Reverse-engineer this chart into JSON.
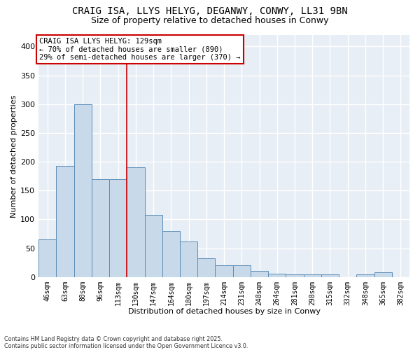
{
  "title_line1": "CRAIG ISA, LLYS HELYG, DEGANWY, CONWY, LL31 9BN",
  "title_line2": "Size of property relative to detached houses in Conwy",
  "xlabel": "Distribution of detached houses by size in Conwy",
  "ylabel": "Number of detached properties",
  "categories": [
    "46sqm",
    "63sqm",
    "80sqm",
    "96sqm",
    "113sqm",
    "130sqm",
    "147sqm",
    "164sqm",
    "180sqm",
    "197sqm",
    "214sqm",
    "231sqm",
    "248sqm",
    "264sqm",
    "281sqm",
    "298sqm",
    "315sqm",
    "332sqm",
    "348sqm",
    "365sqm",
    "382sqm"
  ],
  "values": [
    65,
    193,
    300,
    170,
    170,
    190,
    108,
    80,
    62,
    33,
    20,
    20,
    10,
    6,
    4,
    4,
    4,
    0,
    4,
    8,
    0
  ],
  "bar_color": "#c8d9ea",
  "bar_edge_color": "#5b8db8",
  "vline_color": "#cc0000",
  "vline_x_index": 5,
  "annotation_text": "CRAIG ISA LLYS HELYG: 129sqm\n← 70% of detached houses are smaller (890)\n29% of semi-detached houses are larger (370) →",
  "annotation_box_edgecolor": "#cc0000",
  "ylim": [
    0,
    420
  ],
  "yticks": [
    0,
    50,
    100,
    150,
    200,
    250,
    300,
    350,
    400
  ],
  "plot_bg_color": "#e8eef5",
  "grid_color": "#ffffff",
  "footer": "Contains HM Land Registry data © Crown copyright and database right 2025.\nContains public sector information licensed under the Open Government Licence v3.0.",
  "title_fontsize": 10,
  "subtitle_fontsize": 9
}
